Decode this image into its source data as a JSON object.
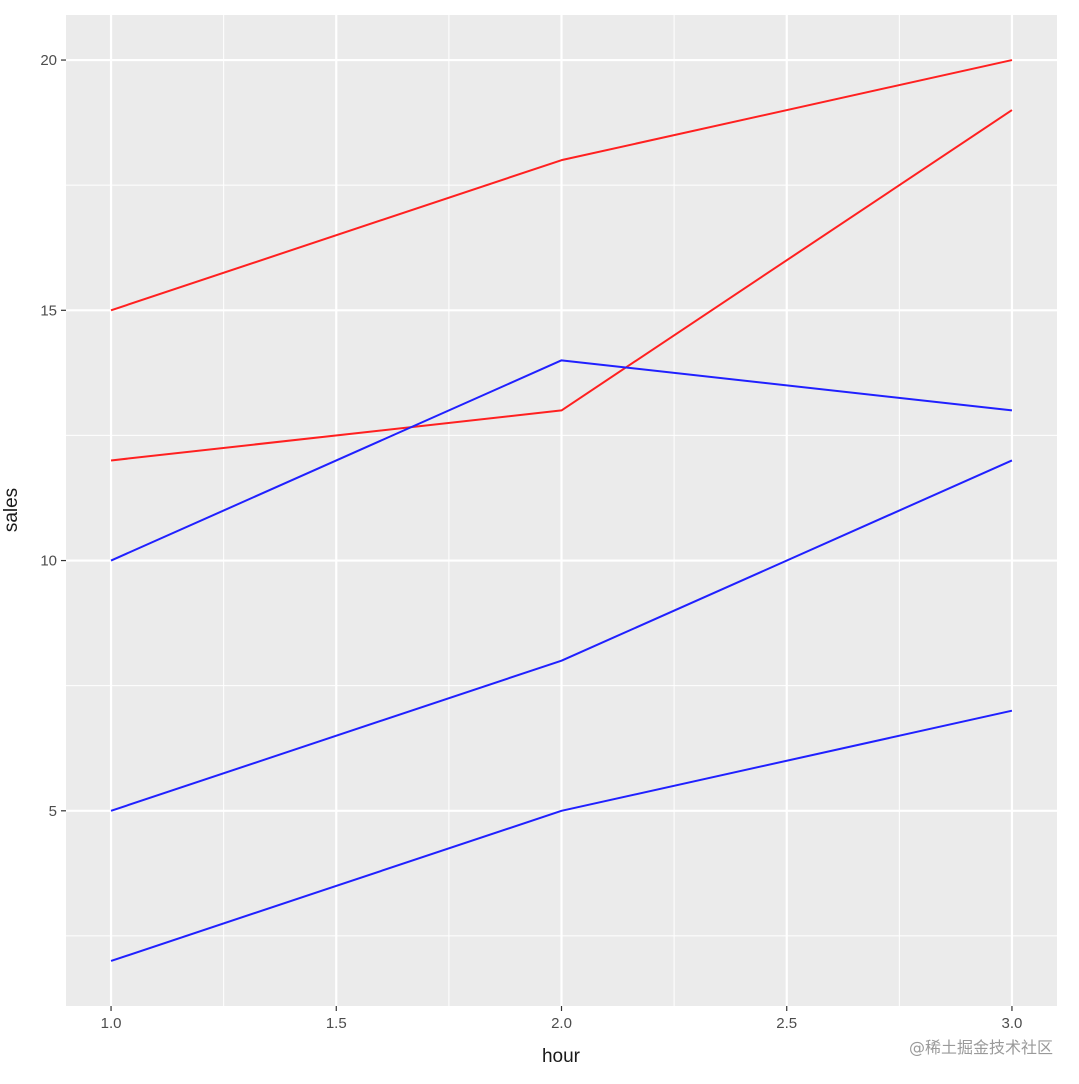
{
  "chart_data": {
    "type": "line",
    "xlabel": "hour",
    "ylabel": "sales",
    "xlim": [
      0.9,
      3.1
    ],
    "ylim": [
      1.1,
      20.9
    ],
    "x_ticks": [
      1.0,
      1.5,
      2.0,
      2.5,
      3.0
    ],
    "x_tick_labels": [
      "1.0",
      "1.5",
      "2.0",
      "2.5",
      "3.0"
    ],
    "y_ticks": [
      5,
      10,
      15,
      20
    ],
    "y_tick_labels": [
      "5",
      "10",
      "15",
      "20"
    ],
    "x_minor": [
      1.25,
      1.75,
      2.25,
      2.75
    ],
    "y_minor": [
      2.5,
      7.5,
      12.5,
      17.5
    ],
    "grid": true,
    "legend": "none",
    "colors": {
      "panel": "#ebebeb",
      "grid": "#ffffff",
      "red": "#ff2020",
      "blue": "#2020ff"
    },
    "x": [
      1,
      2,
      3
    ],
    "series": [
      {
        "color": "#ff2020",
        "values": [
          15,
          18,
          20
        ]
      },
      {
        "color": "#ff2020",
        "values": [
          12,
          13,
          19
        ]
      },
      {
        "color": "#2020ff",
        "values": [
          10,
          14,
          13
        ]
      },
      {
        "color": "#2020ff",
        "values": [
          5,
          8,
          12
        ]
      },
      {
        "color": "#2020ff",
        "values": [
          2,
          5,
          7
        ]
      }
    ]
  },
  "watermark": "@稀土掘金技术社区"
}
